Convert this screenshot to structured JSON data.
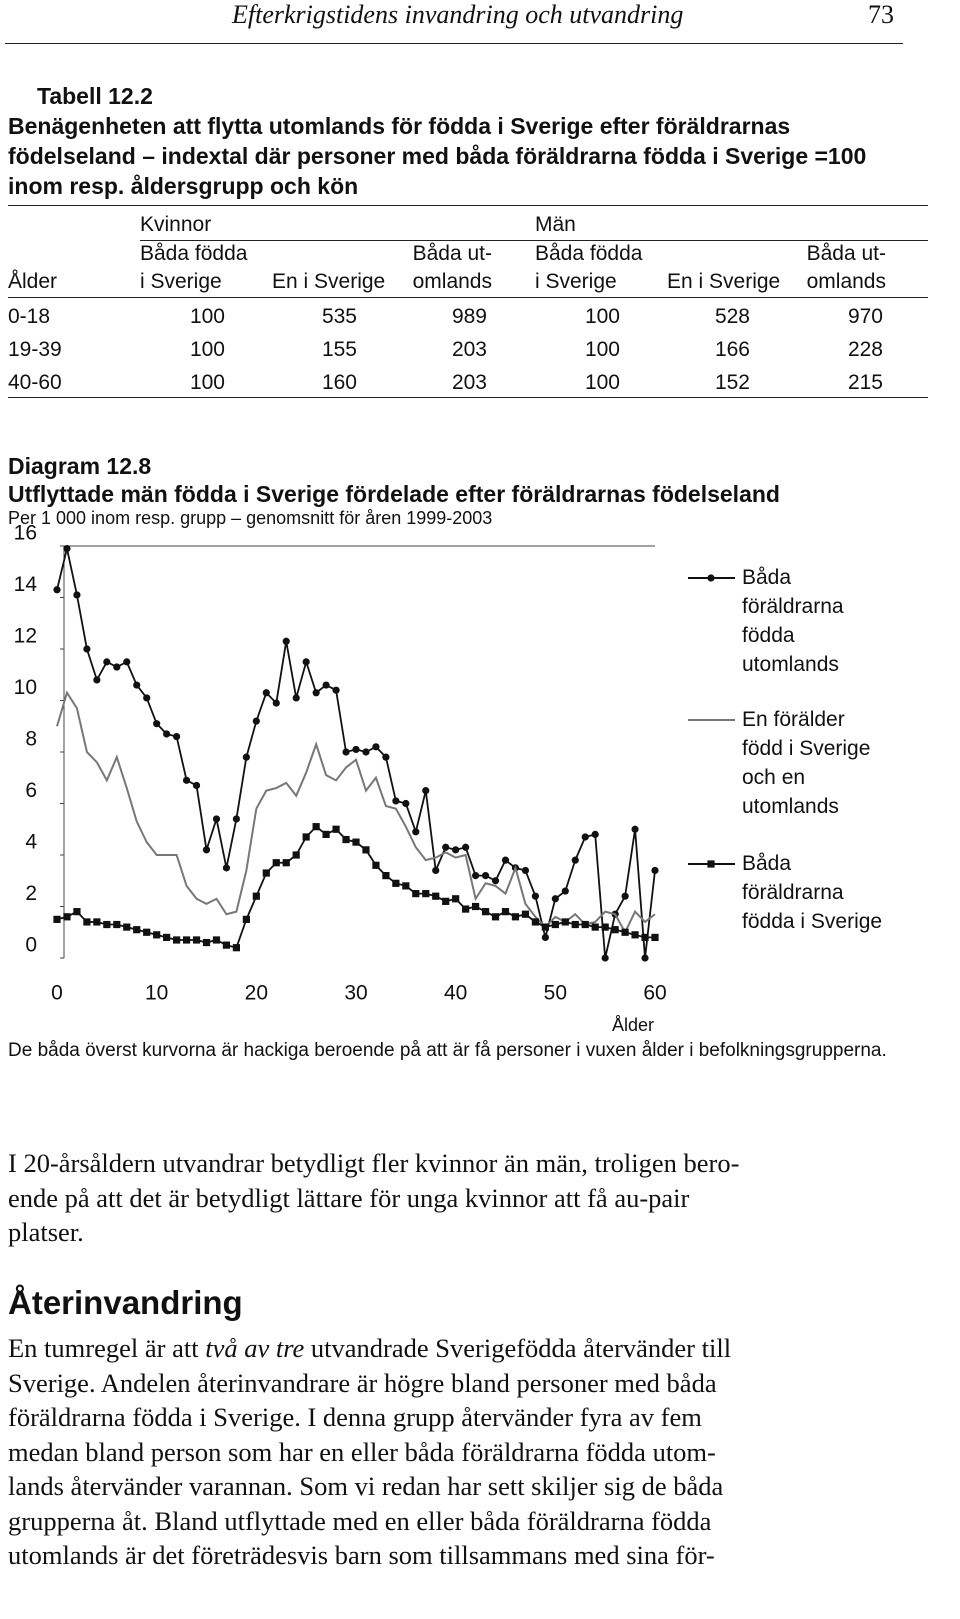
{
  "header": {
    "title": "Efterkrigstidens invandring och utvandring",
    "page_number": "73"
  },
  "table": {
    "label": "Tabell 12.2",
    "title": "Benägenheten att flytta utomlands för födda i Sverige efter föräldrarnas födelseland – indextal där personer med båda föräldrarna födda i Sverige =100 inom resp. åldersgrupp och kön",
    "groups": [
      "Kvinnor",
      "Män"
    ],
    "columns": [
      "Ålder",
      "Båda födda\ni Sverige",
      "En i Sverige",
      "Båda ut-\nomlands",
      "Båda födda\ni Sverige",
      "En i Sverige",
      "Båda ut-\nomlands"
    ],
    "rows": [
      [
        "0-18",
        100,
        535,
        989,
        100,
        528,
        970
      ],
      [
        "19-39",
        100,
        155,
        203,
        100,
        166,
        228
      ],
      [
        "40-60",
        100,
        160,
        203,
        100,
        152,
        215
      ]
    ]
  },
  "chart_data": {
    "type": "line",
    "label": "Diagram 12.8",
    "title": "Utflyttade män födda i Sverige fördelade efter föräldrarnas födelseland",
    "subtitle": "Per 1 000 inom resp. grupp – genomsnitt för åren 1999-2003",
    "x_label": "Ålder",
    "x": [
      0,
      1,
      2,
      3,
      4,
      5,
      6,
      7,
      8,
      9,
      10,
      11,
      12,
      13,
      14,
      15,
      16,
      17,
      18,
      19,
      20,
      21,
      22,
      23,
      24,
      25,
      26,
      27,
      28,
      29,
      30,
      31,
      32,
      33,
      34,
      35,
      36,
      37,
      38,
      39,
      40,
      41,
      42,
      43,
      44,
      45,
      46,
      47,
      48,
      49,
      50,
      51,
      52,
      53,
      54,
      55,
      56,
      57,
      58,
      59,
      60
    ],
    "xlim": [
      0,
      60
    ],
    "xticks": [
      0,
      10,
      20,
      30,
      40,
      50,
      60
    ],
    "ylim": [
      0,
      16
    ],
    "yticks": [
      0,
      2,
      4,
      6,
      8,
      10,
      12,
      14,
      16
    ],
    "legend": "right",
    "series": [
      {
        "name": "Båda föräldrarna födda utomlands",
        "color": "#111111",
        "marker": "circle",
        "values": [
          14.3,
          15.9,
          14.1,
          12.0,
          10.8,
          11.5,
          11.3,
          11.5,
          10.6,
          10.1,
          9.1,
          8.7,
          8.6,
          6.9,
          6.7,
          4.2,
          5.4,
          3.5,
          5.4,
          7.8,
          9.2,
          10.3,
          9.9,
          12.3,
          10.1,
          11.5,
          10.3,
          10.6,
          10.4,
          8.0,
          8.1,
          8.0,
          8.2,
          7.8,
          6.1,
          6.0,
          4.9,
          6.5,
          3.4,
          4.3,
          4.2,
          4.3,
          3.2,
          3.2,
          3.0,
          3.8,
          3.5,
          3.4,
          2.4,
          0.8,
          2.3,
          2.6,
          3.8,
          4.7,
          4.8,
          0,
          1.7,
          2.4,
          5.0,
          0,
          3.4
        ]
      },
      {
        "name": "En förälder född i Sverige och en utomlands",
        "color": "#777777",
        "marker": "none",
        "values": [
          9.0,
          10.3,
          9.7,
          8.0,
          7.6,
          6.9,
          7.8,
          6.6,
          5.3,
          4.5,
          4.0,
          4.0,
          4.0,
          2.8,
          2.3,
          2.1,
          2.3,
          1.7,
          1.8,
          3.4,
          5.8,
          6.5,
          6.6,
          6.8,
          6.3,
          7.2,
          8.3,
          7.1,
          6.9,
          7.4,
          7.7,
          6.5,
          7.0,
          5.9,
          5.8,
          5.1,
          4.3,
          3.8,
          3.9,
          4.1,
          3.9,
          4.0,
          2.3,
          2.9,
          2.8,
          2.5,
          3.5,
          2.1,
          1.6,
          1.2,
          1.6,
          1.4,
          1.7,
          1.3,
          1.4,
          1.8,
          1.7,
          1.0,
          1.8,
          1.4,
          1.7
        ]
      },
      {
        "name": "Båda föräldrarna födda i Sverige",
        "color": "#111111",
        "marker": "square",
        "values": [
          1.5,
          1.6,
          1.8,
          1.4,
          1.4,
          1.3,
          1.3,
          1.2,
          1.1,
          1.0,
          0.9,
          0.8,
          0.7,
          0.7,
          0.7,
          0.6,
          0.7,
          0.5,
          0.4,
          1.5,
          2.4,
          3.3,
          3.7,
          3.7,
          4.0,
          4.7,
          5.1,
          4.8,
          5.0,
          4.6,
          4.5,
          4.2,
          3.6,
          3.2,
          2.9,
          2.8,
          2.5,
          2.5,
          2.4,
          2.2,
          2.3,
          1.9,
          2.0,
          1.8,
          1.6,
          1.8,
          1.6,
          1.7,
          1.4,
          1.2,
          1.3,
          1.4,
          1.3,
          1.3,
          1.2,
          1.2,
          1.1,
          1.0,
          0.9,
          0.8,
          0.8
        ]
      }
    ],
    "note": "De båda överst kurvorna är hackiga beroende på att är få personer i vuxen ålder i befolkningsgrupperna."
  },
  "body": {
    "paragraph_1": [
      "I 20-årsåldern utvandrar betydligt fler kvinnor än män, troligen bero-",
      "ende på att det är betydligt lättare för unga kvinnor att få au-pair",
      "platser."
    ],
    "heading": "Återinvandring",
    "paragraph_2": {
      "first_line": [
        "En tumregel är att ",
        "två av tre",
        " utvandrade Sverigefödda återvänder till"
      ],
      "lines": [
        "Sverige. Andelen återinvandrare är högre bland personer med båda",
        "föräldrarna födda i Sverige. I denna grupp återvänder fyra av fem",
        "medan bland person som har en eller båda föräldrarna födda utom-",
        "lands återvänder varannan. Som vi redan har sett skiljer sig de båda",
        "grupperna åt. Bland utflyttade med en eller båda föräldrarna födda",
        "utomlands är det företrädesvis barn som tillsammans med sina för-"
      ]
    }
  }
}
